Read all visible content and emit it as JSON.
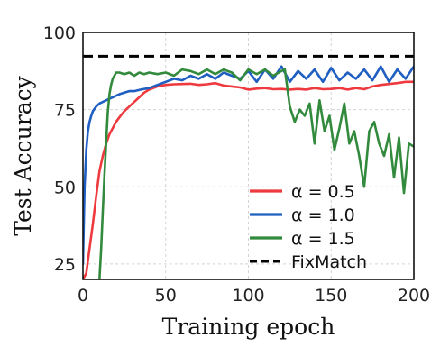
{
  "chart_data": {
    "type": "line",
    "title": "",
    "xlabel": "Training epoch",
    "ylabel": "Test Accuracy",
    "xlim": [
      0,
      200
    ],
    "ylim": [
      20,
      100
    ],
    "xticks": [
      0,
      50,
      100,
      150,
      200
    ],
    "yticks": [
      25,
      50,
      75,
      100
    ],
    "grid": true,
    "legend_position": "bottom-right",
    "series": [
      {
        "name": "α = 0.5",
        "color": "#ee3a3f",
        "style": "solid",
        "x": [
          0,
          2,
          4,
          6,
          8,
          10,
          12,
          14,
          16,
          18,
          20,
          22,
          25,
          28,
          31,
          34,
          37,
          40,
          45,
          50,
          55,
          60,
          65,
          70,
          75,
          80,
          85,
          90,
          95,
          100,
          105,
          110,
          115,
          120,
          125,
          130,
          135,
          140,
          145,
          150,
          155,
          160,
          165,
          170,
          175,
          180,
          185,
          190,
          195,
          200
        ],
        "y": [
          20,
          22,
          30,
          38,
          47,
          55,
          60,
          64,
          67,
          69,
          71,
          72.5,
          74.5,
          76,
          77.5,
          79,
          80.5,
          81.5,
          82.5,
          83,
          83.2,
          83.3,
          83.4,
          83,
          83.2,
          83.6,
          82.8,
          82.5,
          82.2,
          81.5,
          81.8,
          82,
          81.6,
          81.7,
          81.5,
          81.7,
          81.5,
          82,
          81.6,
          81.7,
          82,
          81.5,
          82,
          81.6,
          82.5,
          83,
          83.3,
          83.6,
          84,
          84
        ]
      },
      {
        "name": "α = 1.0",
        "color": "#1f5fc1",
        "style": "solid",
        "x": [
          0,
          1,
          2,
          3,
          4,
          5,
          6,
          8,
          10,
          12,
          14,
          16,
          18,
          20,
          22,
          25,
          28,
          31,
          35,
          40,
          45,
          50,
          55,
          60,
          65,
          70,
          75,
          80,
          85,
          90,
          95,
          100,
          105,
          110,
          115,
          120,
          125,
          130,
          135,
          140,
          145,
          150,
          155,
          160,
          165,
          170,
          175,
          180,
          185,
          190,
          195,
          200
        ],
        "y": [
          25,
          50,
          62,
          68,
          71,
          73,
          74.5,
          76,
          77,
          77.5,
          78,
          78.5,
          79,
          79.5,
          80,
          80.5,
          81,
          81,
          81.5,
          82,
          83,
          84,
          85,
          84.5,
          86,
          85,
          86.5,
          85,
          87,
          86,
          85,
          87.5,
          84,
          88,
          85,
          89,
          84,
          87.5,
          85,
          88,
          84,
          88.5,
          84.5,
          87,
          85,
          88,
          84.5,
          89,
          84,
          88,
          85,
          89
        ]
      },
      {
        "name": "α = 1.5",
        "color": "#328a3c",
        "style": "solid",
        "x": [
          10,
          11,
          12,
          13,
          14,
          15,
          16,
          17,
          18,
          19,
          20,
          22,
          25,
          28,
          31,
          34,
          37,
          40,
          45,
          50,
          55,
          60,
          65,
          70,
          75,
          80,
          85,
          90,
          95,
          100,
          105,
          110,
          115,
          120,
          122,
          125,
          128,
          131,
          134,
          137,
          140,
          143,
          146,
          149,
          152,
          155,
          158,
          161,
          164,
          167,
          170,
          173,
          176,
          179,
          182,
          185,
          188,
          191,
          194,
          197,
          200
        ],
        "y": [
          20,
          30,
          42,
          54,
          64,
          74,
          80,
          83,
          85,
          86,
          87,
          87,
          86.5,
          87,
          86,
          87,
          86.5,
          87,
          86.5,
          87,
          86,
          88,
          87.5,
          86.5,
          88,
          86.5,
          88,
          87,
          84.5,
          88,
          86.5,
          88,
          86,
          87.5,
          88,
          76,
          71,
          75,
          73,
          77,
          64,
          78,
          68,
          73,
          62,
          69,
          77,
          64,
          68,
          60,
          50,
          68,
          71,
          64,
          60,
          67,
          53,
          66,
          48,
          64,
          63
        ]
      },
      {
        "name": "FixMatch",
        "color": "#000000",
        "style": "dashed",
        "x": [
          0,
          200
        ],
        "y": [
          92.3,
          92.3
        ]
      }
    ]
  }
}
